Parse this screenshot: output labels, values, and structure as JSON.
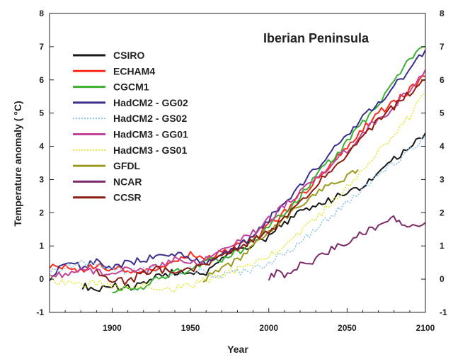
{
  "chart_data": {
    "type": "line",
    "title": "Iberian Peninsula",
    "xlabel": "Year",
    "ylabel": "Temperature anomaly ( °C)",
    "xlim": [
      1860,
      2100
    ],
    "ylim": [
      -1,
      8
    ],
    "x_ticks": [
      1900,
      1950,
      2000,
      2050,
      2100
    ],
    "y_ticks": [
      -1,
      0,
      1,
      2,
      3,
      4,
      5,
      6,
      7,
      8
    ],
    "grid": false,
    "legend_position": "top-left",
    "series": [
      {
        "name": "CSIRO",
        "color": "#1a1a1a",
        "dash": "solid",
        "x": [
          1881,
          1890,
          1900,
          1910,
          1920,
          1930,
          1940,
          1950,
          1960,
          1970,
          1980,
          1990,
          2000,
          2010,
          2020,
          2030,
          2040,
          2050,
          2060,
          2070,
          2080,
          2090,
          2100
        ],
        "y": [
          -0.2,
          -0.3,
          -0.2,
          -0.25,
          -0.1,
          0.1,
          0.2,
          0.15,
          0.2,
          0.6,
          0.9,
          1.0,
          1.3,
          1.7,
          2.0,
          2.2,
          2.4,
          2.6,
          2.8,
          3.2,
          3.6,
          4.0,
          4.4
        ]
      },
      {
        "name": "ECHAM4",
        "color": "#ff2a1a",
        "dash": "solid",
        "x": [
          1860,
          1870,
          1880,
          1890,
          1900,
          1910,
          1920,
          1930,
          1940,
          1950,
          1960,
          1970,
          1980,
          1990,
          2000,
          2010,
          2020,
          2030,
          2040,
          2050,
          2060,
          2070,
          2080,
          2090,
          2100
        ],
        "y": [
          0.4,
          0.35,
          0.3,
          0.4,
          0.3,
          0.3,
          0.2,
          0.3,
          0.5,
          0.8,
          0.6,
          0.8,
          1.0,
          1.2,
          1.6,
          2.0,
          2.5,
          3.0,
          3.5,
          4.0,
          4.5,
          5.0,
          5.3,
          5.7,
          6.1
        ]
      },
      {
        "name": "CGCM1",
        "color": "#3cb034",
        "dash": "solid",
        "x": [
          1900,
          1910,
          1920,
          1930,
          1940,
          1950,
          1960,
          1970,
          1980,
          1990,
          2000,
          2010,
          2020,
          2030,
          2040,
          2050,
          2060,
          2070,
          2080,
          2090,
          2100
        ],
        "y": [
          -0.3,
          -0.3,
          -0.2,
          0.0,
          0.2,
          0.3,
          0.5,
          0.6,
          0.8,
          1.1,
          1.6,
          2.0,
          2.5,
          3.1,
          3.6,
          4.1,
          4.7,
          5.3,
          5.9,
          6.6,
          7.0
        ]
      },
      {
        "name": "HadCM2 - GG02",
        "color": "#3b2f8c",
        "dash": "solid",
        "x": [
          1860,
          1870,
          1880,
          1890,
          1900,
          1910,
          1920,
          1930,
          1940,
          1950,
          1960,
          1970,
          1980,
          1990,
          2000,
          2010,
          2020,
          2030,
          2040,
          2050,
          2060,
          2070,
          2080,
          2090,
          2100
        ],
        "y": [
          0.0,
          0.5,
          0.4,
          0.5,
          0.4,
          0.5,
          0.6,
          0.7,
          0.8,
          0.6,
          0.5,
          0.7,
          1.0,
          1.3,
          1.8,
          2.3,
          2.8,
          3.3,
          3.9,
          4.3,
          4.9,
          5.3,
          5.8,
          6.3,
          6.9
        ]
      },
      {
        "name": "HadCM2 - GS02",
        "color": "#8ac4ea",
        "dash": "dotted",
        "x": [
          1860,
          1870,
          1880,
          1890,
          1900,
          1910,
          1920,
          1930,
          1940,
          1950,
          1960,
          1970,
          1980,
          1990,
          2000,
          2010,
          2020,
          2030,
          2040,
          2050,
          2060,
          2070,
          2080,
          2090,
          2100
        ],
        "y": [
          0.2,
          0.4,
          0.5,
          0.4,
          0.3,
          0.2,
          0.3,
          0.3,
          0.2,
          0.3,
          0.2,
          0.1,
          0.2,
          0.3,
          0.5,
          0.8,
          1.1,
          1.5,
          1.9,
          2.3,
          2.7,
          3.1,
          3.5,
          3.9,
          4.3
        ]
      },
      {
        "name": "HadCM3 - GG01",
        "color": "#c0449a",
        "dash": "solid",
        "x": [
          1860,
          1870,
          1880,
          1890,
          1900,
          1910,
          1920,
          1930,
          1940,
          1950,
          1960,
          1970,
          1980,
          1990,
          2000,
          2010,
          2020,
          2030,
          2040,
          2050,
          2060,
          2070,
          2080,
          2090,
          2100
        ],
        "y": [
          0.2,
          0.1,
          0.3,
          0.2,
          0.1,
          0.3,
          0.2,
          0.4,
          0.6,
          0.5,
          0.6,
          0.9,
          1.1,
          1.4,
          1.8,
          2.2,
          2.6,
          3.0,
          3.4,
          3.9,
          4.4,
          4.8,
          5.2,
          5.7,
          6.3
        ]
      },
      {
        "name": "HadCM3 - GS01",
        "color": "#e5e629",
        "dash": "dotted",
        "x": [
          1860,
          1870,
          1880,
          1890,
          1900,
          1910,
          1920,
          1930,
          1940,
          1950,
          1960,
          1970,
          1980,
          1990,
          2000,
          2010,
          2020,
          2030,
          2040,
          2050,
          2060,
          2070,
          2080,
          2090,
          2100
        ],
        "y": [
          0.0,
          -0.1,
          -0.2,
          -0.1,
          -0.2,
          -0.3,
          -0.2,
          -0.3,
          -0.3,
          -0.2,
          0.0,
          0.1,
          0.3,
          0.5,
          0.7,
          1.0,
          1.4,
          1.8,
          2.3,
          2.8,
          3.3,
          3.8,
          4.4,
          4.9,
          5.6
        ]
      },
      {
        "name": "GFDL",
        "color": "#9b9a1f",
        "dash": "solid",
        "x": [
          1958,
          1970,
          1980,
          1990,
          2000,
          2010,
          2020,
          2030,
          2040,
          2050,
          2057
        ],
        "y": [
          0.0,
          0.3,
          0.6,
          1.0,
          1.4,
          1.8,
          2.2,
          2.6,
          2.9,
          3.1,
          3.3
        ]
      },
      {
        "name": "NCAR",
        "color": "#7d2a68",
        "dash": "solid",
        "x": [
          2000,
          2005,
          2010,
          2020,
          2030,
          2040,
          2050,
          2060,
          2070,
          2078,
          2085,
          2090,
          2100
        ],
        "y": [
          0.0,
          0.2,
          0.1,
          0.4,
          0.6,
          0.9,
          1.1,
          1.4,
          1.6,
          1.9,
          1.7,
          1.6,
          1.7
        ]
      },
      {
        "name": "CCSR",
        "color": "#8c1c10",
        "dash": "solid",
        "x": [
          1890,
          1900,
          1910,
          1920,
          1930,
          1940,
          1950,
          1960,
          1970,
          1980,
          1990,
          2000,
          2010,
          2020,
          2030,
          2040,
          2050,
          2060,
          2070,
          2080,
          2090,
          2100
        ],
        "y": [
          0.2,
          0.0,
          -0.1,
          0.2,
          0.3,
          0.2,
          0.3,
          0.4,
          0.7,
          0.9,
          1.2,
          1.4,
          1.8,
          2.3,
          2.8,
          3.3,
          3.8,
          4.3,
          4.8,
          5.2,
          5.6,
          6.0
        ]
      }
    ]
  }
}
